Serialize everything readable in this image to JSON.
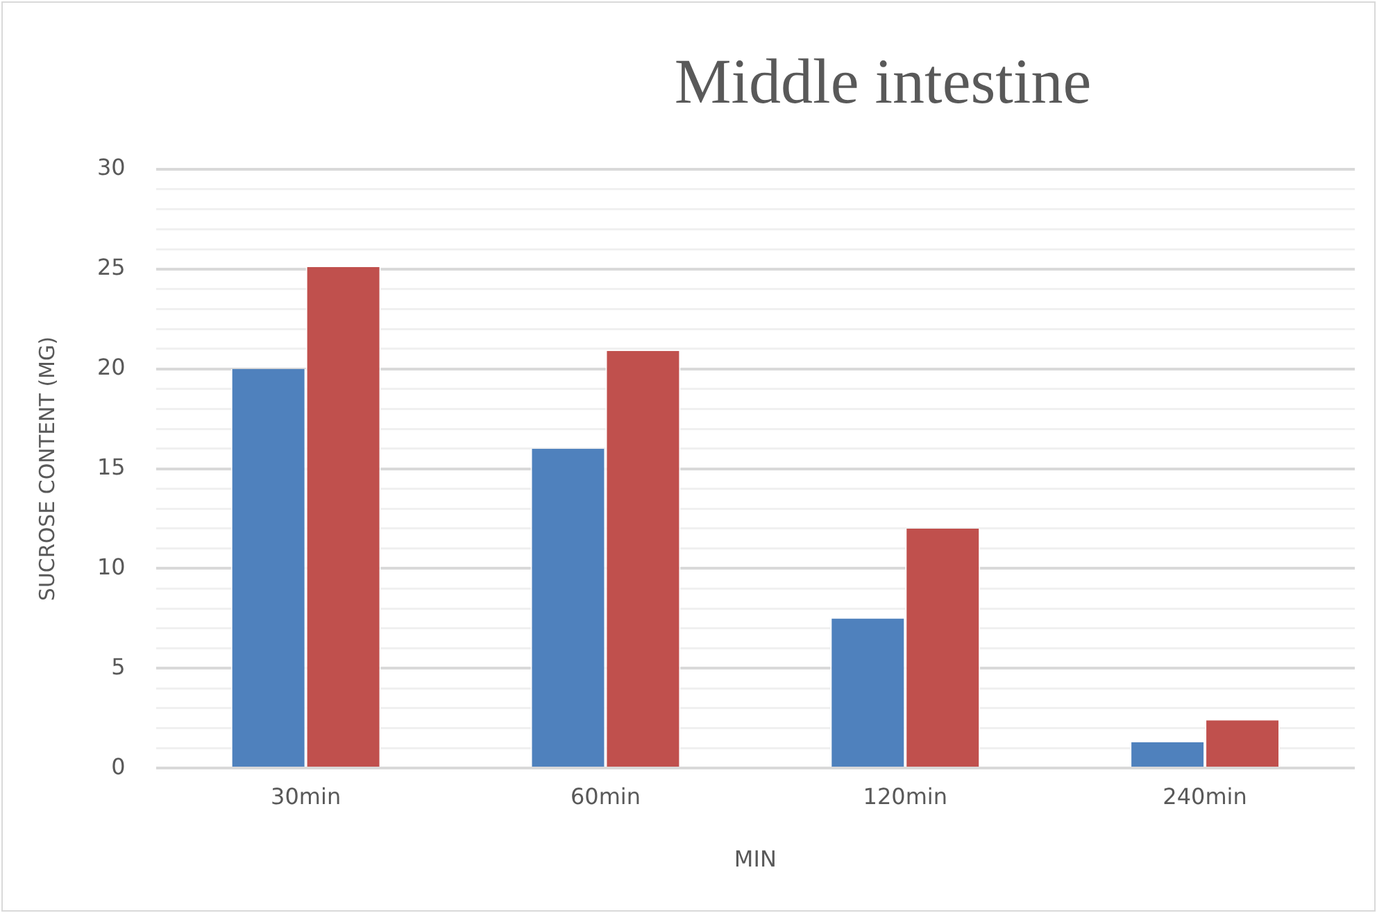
{
  "chart_data": {
    "type": "bar",
    "title": "Middle intestine",
    "xlabel": "MIN",
    "ylabel": "SUCROSE CONTENT (MG)",
    "categories": [
      "30min",
      "60min",
      "120min",
      "240min"
    ],
    "series": [
      {
        "color": "#4f81bd",
        "values": [
          20,
          16,
          7.5,
          1.3
        ]
      },
      {
        "color": "#c0504d",
        "values": [
          25.1,
          20.9,
          12,
          2.4
        ]
      }
    ],
    "ylim": [
      0,
      30
    ],
    "yticks": [
      0,
      {
        "value": 1,
        "label": null
      },
      {
        "value": 2,
        "label": null
      },
      {
        "value": 3,
        "label": null
      },
      {
        "value": 4,
        "label": null
      },
      5,
      {
        "value": 6,
        "label": null
      },
      {
        "value": 7,
        "label": null
      },
      {
        "value": 8,
        "label": null
      },
      {
        "value": 9,
        "label": null
      },
      10,
      {
        "value": 11,
        "label": null
      },
      {
        "value": 12,
        "label": null
      },
      {
        "value": 13,
        "label": null
      },
      {
        "value": 14,
        "label": null
      },
      15,
      {
        "value": 16,
        "label": null
      },
      {
        "value": 17,
        "label": null
      },
      {
        "value": 18,
        "label": null
      },
      {
        "value": 19,
        "label": null
      },
      20,
      {
        "value": 21,
        "label": null
      },
      {
        "value": 22,
        "label": null
      },
      {
        "value": 23,
        "label": null
      },
      {
        "value": 24,
        "label": null
      },
      25,
      {
        "value": 26,
        "label": null
      },
      {
        "value": 27,
        "label": null
      },
      {
        "value": 28,
        "label": null
      },
      {
        "value": 29,
        "label": null
      },
      30
    ],
    "grid": "y",
    "legend": false
  }
}
